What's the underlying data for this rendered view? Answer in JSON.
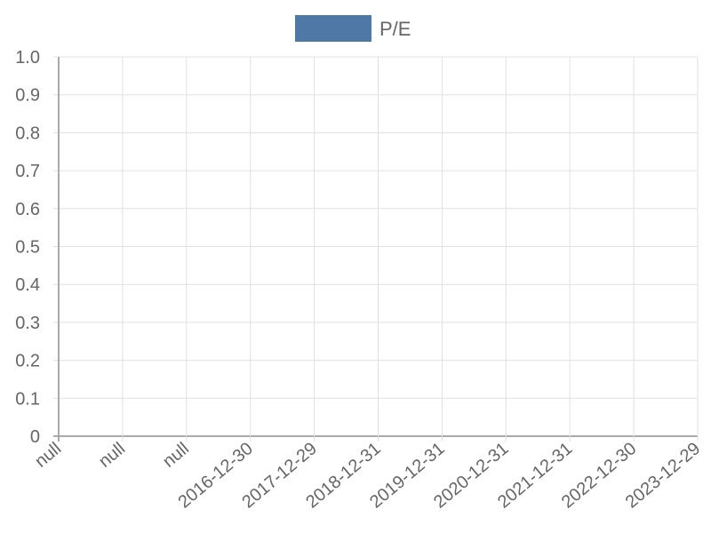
{
  "chart_data": {
    "type": "line",
    "title": "",
    "xlabel": "",
    "ylabel": "",
    "categories": [
      "null",
      "null",
      "null",
      "2016-12-30",
      "2017-12-29",
      "2018-12-31",
      "2019-12-31",
      "2020-12-31",
      "2021-12-31",
      "2022-12-30",
      "2023-12-29"
    ],
    "series": [
      {
        "name": "P/E",
        "color": "#4e79a7",
        "values": [
          null,
          null,
          null,
          null,
          null,
          null,
          null,
          null,
          null,
          null,
          null
        ]
      }
    ],
    "ylim": [
      0,
      1
    ],
    "yticks": [
      "0",
      "0.1",
      "0.2",
      "0.3",
      "0.4",
      "0.5",
      "0.6",
      "0.7",
      "0.8",
      "0.9",
      "1.0"
    ],
    "grid": true,
    "legend_position": "top"
  }
}
